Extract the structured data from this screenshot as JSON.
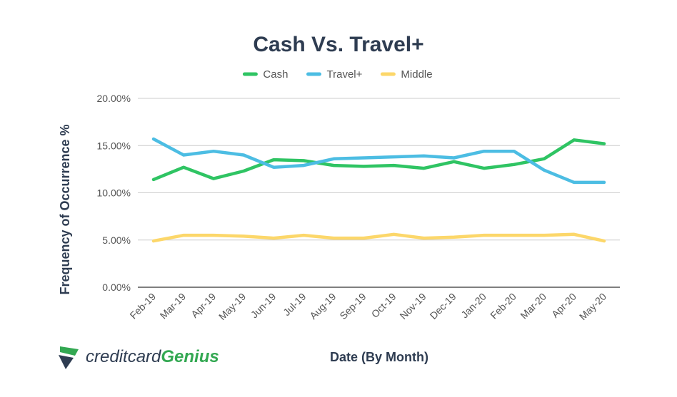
{
  "chart_data": {
    "type": "line",
    "title": "Cash Vs. Travel+",
    "xlabel": "Date (By Month)",
    "ylabel": "Frequency of Occurrence %",
    "categories": [
      "Feb-19",
      "Mar-19",
      "Apr-19",
      "May-19",
      "Jun-19",
      "Jul-19",
      "Aug-19",
      "Sep-19",
      "Oct-19",
      "Nov-19",
      "Dec-19",
      "Jan-20",
      "Feb-20",
      "Mar-20",
      "Apr-20",
      "May-20"
    ],
    "ylim": [
      0,
      20
    ],
    "yticks": [
      0,
      5,
      10,
      15,
      20
    ],
    "ytick_labels": [
      "0.00%",
      "5.00%",
      "10.00%",
      "15.00%",
      "20.00%"
    ],
    "grid": true,
    "legend_position": "top",
    "series": [
      {
        "name": "Cash",
        "color": "#2fc463",
        "values": [
          11.4,
          12.7,
          11.5,
          12.3,
          13.5,
          13.4,
          12.9,
          12.8,
          12.9,
          12.6,
          13.3,
          12.6,
          13.0,
          13.6,
          15.6,
          15.2
        ]
      },
      {
        "name": "Travel+",
        "color": "#4cbde3",
        "values": [
          15.7,
          14.0,
          14.4,
          14.0,
          12.7,
          12.9,
          13.6,
          13.7,
          13.8,
          13.9,
          13.7,
          14.4,
          14.4,
          12.4,
          11.1,
          11.1
        ]
      },
      {
        "name": "Middle",
        "color": "#fcd76a",
        "values": [
          4.9,
          5.5,
          5.5,
          5.4,
          5.2,
          5.5,
          5.2,
          5.2,
          5.6,
          5.2,
          5.3,
          5.5,
          5.5,
          5.5,
          5.6,
          4.9
        ]
      }
    ]
  },
  "brand": {
    "name_part1": "creditcard",
    "name_part2": "Genius",
    "logo_colors": [
      "#2e3c51",
      "#33a852"
    ]
  }
}
